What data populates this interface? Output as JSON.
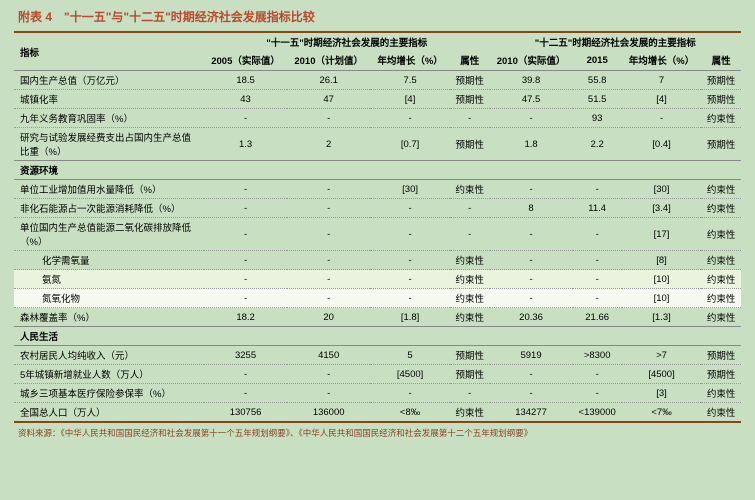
{
  "colors": {
    "background": "#c8dfc2",
    "title": "#b84a2e",
    "border_heavy": "#8b4513",
    "border_light": "#888",
    "highlight1": "#eaf3de",
    "highlight2": "#f5f9ef"
  },
  "title": "附表 4　\"十一五\"与\"十二五\"时期经济社会发展指标比较",
  "headers": {
    "indicator": "指标",
    "group1": "\"十一五\"时期经济社会发展的主要指标",
    "group2": "\"十二五\"时期经济社会发展的主要指标",
    "c2005": "2005（实际值）",
    "c2010p": "2010（计划值）",
    "growth": "年均增长（%）",
    "attr": "属性",
    "c2010a": "2010（实际值）",
    "c2015": "2015"
  },
  "sections": {
    "s1": "资源环境",
    "s2": "人民生活"
  },
  "rows": {
    "r1": {
      "label": "国内生产总值（万亿元）",
      "a": "18.5",
      "b": "26.1",
      "c": "7.5",
      "d": "预期性",
      "e": "39.8",
      "f": "55.8",
      "g": "7",
      "h": "预期性"
    },
    "r2": {
      "label": "城镇化率",
      "a": "43",
      "b": "47",
      "c": "[4]",
      "d": "预期性",
      "e": "47.5",
      "f": "51.5",
      "g": "[4]",
      "h": "预期性"
    },
    "r3": {
      "label": "九年义务教育巩固率（%）",
      "a": "-",
      "b": "-",
      "c": "-",
      "d": "-",
      "e": "-",
      "f": "93",
      "g": "-",
      "h": "约束性"
    },
    "r4": {
      "label": "研究与试验发展经费支出占国内生产总值比重（%）",
      "a": "1.3",
      "b": "2",
      "c": "[0.7]",
      "d": "预期性",
      "e": "1.8",
      "f": "2.2",
      "g": "[0.4]",
      "h": "预期性"
    },
    "r5": {
      "label": "单位工业增加值用水量降低（%）",
      "a": "-",
      "b": "-",
      "c": "[30]",
      "d": "约束性",
      "e": "-",
      "f": "-",
      "g": "[30]",
      "h": "约束性"
    },
    "r6": {
      "label": "非化石能源占一次能源消耗降低（%）",
      "a": "-",
      "b": "-",
      "c": "-",
      "d": "-",
      "e": "8",
      "f": "11.4",
      "g": "[3.4]",
      "h": "约束性"
    },
    "r7": {
      "label": "单位国内生产总值能源二氧化碳排放降低（%）",
      "a": "-",
      "b": "-",
      "c": "-",
      "d": "-",
      "e": "-",
      "f": "-",
      "g": "[17]",
      "h": "约束性"
    },
    "r8": {
      "label": "化学需氧量",
      "a": "-",
      "b": "-",
      "c": "-",
      "d": "约束性",
      "e": "-",
      "f": "-",
      "g": "[8]",
      "h": "约束性"
    },
    "r9": {
      "label": "氨氮",
      "a": "-",
      "b": "-",
      "c": "-",
      "d": "约束性",
      "e": "-",
      "f": "-",
      "g": "[10]",
      "h": "约束性"
    },
    "r10": {
      "label": "氮氧化物",
      "a": "-",
      "b": "-",
      "c": "-",
      "d": "约束性",
      "e": "-",
      "f": "-",
      "g": "[10]",
      "h": "约束性"
    },
    "r11": {
      "label": "森林覆盖率（%）",
      "a": "18.2",
      "b": "20",
      "c": "[1.8]",
      "d": "约束性",
      "e": "20.36",
      "f": "21.66",
      "g": "[1.3]",
      "h": "约束性"
    },
    "r12": {
      "label": "农村居民人均纯收入（元）",
      "a": "3255",
      "b": "4150",
      "c": "5",
      "d": "预期性",
      "e": "5919",
      "f": ">8300",
      "g": ">7",
      "h": "预期性"
    },
    "r13": {
      "label": "5年城镇新增就业人数（万人）",
      "a": "-",
      "b": "-",
      "c": "[4500]",
      "d": "预期性",
      "e": "-",
      "f": "-",
      "g": "[4500]",
      "h": "预期性"
    },
    "r14": {
      "label": "城乡三项基本医疗保险参保率（%）",
      "a": "-",
      "b": "-",
      "c": "-",
      "d": "-",
      "e": "-",
      "f": "-",
      "g": "[3]",
      "h": "约束性"
    },
    "r15": {
      "label": "全国总人口（万人）",
      "a": "130756",
      "b": "136000",
      "c": "<8‰",
      "d": "约束性",
      "e": "134277",
      "f": "<139000",
      "g": "<7‰",
      "h": "约束性"
    }
  },
  "source": "资料来源：《中华人民共和国国民经济和社会发展第十一个五年规划纲要》、《中华人民共和国国民经济和社会发展第十二个五年规划纲要》"
}
